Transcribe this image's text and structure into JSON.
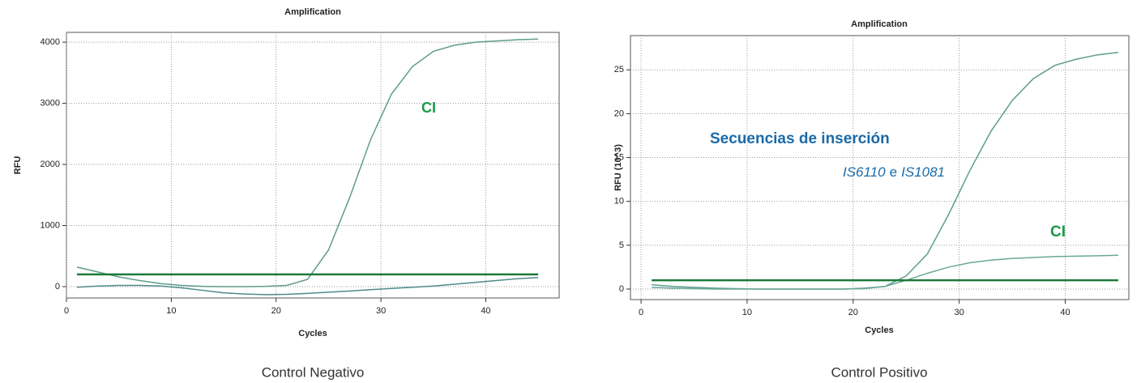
{
  "chart_data": [
    {
      "type": "line",
      "title": "Amplification",
      "xlabel": "Cycles",
      "ylabel": "RFU",
      "caption": "Control Negativo",
      "x": [
        1,
        3,
        5,
        7,
        9,
        11,
        13,
        15,
        17,
        19,
        21,
        23,
        25,
        27,
        29,
        31,
        33,
        35,
        37,
        39,
        41,
        43,
        45
      ],
      "xlim": [
        0,
        47
      ],
      "xticks": [
        0,
        10,
        20,
        30,
        40
      ],
      "ylim": [
        -185,
        4160
      ],
      "yticks": [
        0,
        1000,
        2000,
        3000,
        4000
      ],
      "grid": true,
      "series": [
        {
          "color": "#5f9c8c",
          "values": [
            320,
            240,
            160,
            100,
            50,
            20,
            5,
            0,
            0,
            5,
            20,
            120,
            600,
            1450,
            2400,
            3150,
            3600,
            3850,
            3950,
            4000,
            4020,
            4040,
            4050
          ]
        },
        {
          "color": "#4f8a8c",
          "values": [
            -10,
            10,
            20,
            20,
            10,
            -20,
            -60,
            -100,
            -120,
            -130,
            -125,
            -110,
            -90,
            -70,
            -50,
            -30,
            -10,
            10,
            40,
            70,
            100,
            130,
            150
          ]
        },
        {
          "color": "#1e7a3a",
          "values": [
            200,
            200,
            200,
            200,
            200,
            200,
            200,
            200,
            200,
            200,
            200,
            200,
            200,
            200,
            200,
            200,
            200,
            200,
            200,
            200,
            200,
            200,
            200
          ]
        }
      ],
      "annotations": [
        {
          "text": "CI",
          "color": "#1a9a4a"
        }
      ]
    },
    {
      "type": "line",
      "title": "Amplification",
      "xlabel": "Cycles",
      "ylabel": "RFU (10^3)",
      "caption": "Control Positivo",
      "x": [
        1,
        3,
        5,
        7,
        9,
        11,
        13,
        15,
        17,
        19,
        21,
        23,
        25,
        27,
        29,
        31,
        33,
        35,
        37,
        39,
        41,
        43,
        45
      ],
      "xlim": [
        -1,
        46
      ],
      "xticks": [
        0,
        10,
        20,
        30,
        40
      ],
      "ylim": [
        -1.2,
        28.9
      ],
      "yticks": [
        0,
        5,
        10,
        15,
        20,
        25
      ],
      "grid": true,
      "series": [
        {
          "color": "#5f9c8c",
          "values": [
            0.5,
            0.3,
            0.2,
            0.1,
            0.05,
            0,
            0,
            0,
            0,
            0,
            0.1,
            0.3,
            1.5,
            4,
            8.5,
            13.5,
            18,
            21.5,
            24,
            25.5,
            26.2,
            26.7,
            27
          ]
        },
        {
          "color": "#6aa89a",
          "values": [
            0.2,
            0.1,
            0.05,
            0,
            0,
            0,
            0,
            0,
            0,
            0,
            0.05,
            0.3,
            1,
            1.8,
            2.5,
            3,
            3.3,
            3.5,
            3.6,
            3.7,
            3.75,
            3.8,
            3.85
          ]
        },
        {
          "color": "#1e7a3a",
          "values": [
            1,
            1,
            1,
            1,
            1,
            1,
            1,
            1,
            1,
            1,
            1,
            1,
            1,
            1,
            1,
            1,
            1,
            1,
            1,
            1,
            1,
            1,
            1
          ]
        }
      ],
      "annotations": [
        {
          "text": "Secuencias de inserción",
          "color": "#1a6aa8"
        },
        {
          "parts": [
            "IS6110",
            "e",
            "IS1081"
          ],
          "color": "#1a6aa8"
        },
        {
          "text": "CI",
          "color": "#1a9a4a"
        }
      ]
    }
  ]
}
